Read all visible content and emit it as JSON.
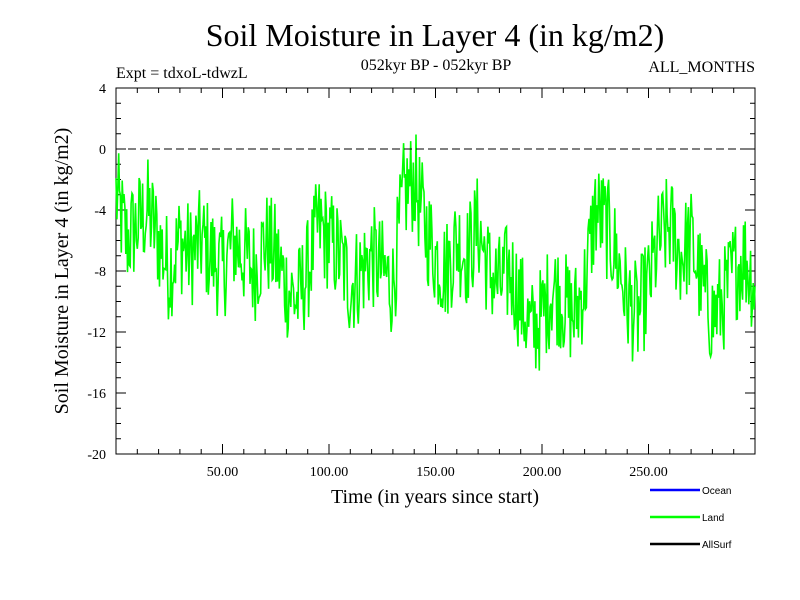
{
  "chart_data": {
    "type": "line",
    "title": "Soil Moisture in Layer 4 (in kg/m2)",
    "subtitle_left": "Expt = tdxoL-tdwzL",
    "subtitle_center": "052kyr BP - 052kyr BP",
    "subtitle_right": "ALL_MONTHS",
    "xlabel": "Time (in years since start)",
    "ylabel": "Soil Moisture in Layer 4 (in kg/m2)",
    "xlim": [
      0,
      300
    ],
    "ylim": [
      -20,
      4
    ],
    "x_ticks": [
      {
        "value": 50,
        "label": "50.00"
      },
      {
        "value": 100,
        "label": "100.00"
      },
      {
        "value": 150,
        "label": "150.00"
      },
      {
        "value": 200,
        "label": "200.00"
      },
      {
        "value": 250,
        "label": "250.00"
      }
    ],
    "y_ticks": [
      {
        "value": 4,
        "label": "4"
      },
      {
        "value": 0,
        "label": "0"
      },
      {
        "value": -4,
        "label": "-4"
      },
      {
        "value": -8,
        "label": "-8"
      },
      {
        "value": -12,
        "label": "-12"
      },
      {
        "value": -16,
        "label": "-16"
      },
      {
        "value": -20,
        "label": "-20"
      }
    ],
    "reference_line": {
      "y": 0,
      "style": "dashed"
    },
    "legend_position": "bottom-right",
    "series": [
      {
        "name": "Ocean",
        "color": "#0000ff",
        "x": [],
        "y": []
      },
      {
        "name": "Land",
        "color": "#00ff00",
        "x": [
          0,
          5,
          10,
          15,
          20,
          25,
          30,
          35,
          40,
          45,
          50,
          55,
          60,
          65,
          70,
          75,
          80,
          85,
          90,
          95,
          100,
          105,
          110,
          115,
          120,
          125,
          130,
          135,
          140,
          145,
          150,
          155,
          160,
          165,
          170,
          175,
          180,
          185,
          190,
          195,
          200,
          205,
          210,
          215,
          220,
          225,
          230,
          235,
          240,
          245,
          250,
          255,
          260,
          265,
          270,
          275,
          280,
          285,
          290,
          295,
          300
        ],
        "y": [
          -3,
          -6,
          -5,
          -4,
          -6,
          -8,
          -6,
          -7,
          -6,
          -7,
          -8,
          -6,
          -7,
          -8,
          -6,
          -7,
          -9,
          -10,
          -8,
          -5,
          -6,
          -7,
          -9,
          -8,
          -7,
          -8,
          -9,
          -3,
          -2,
          -5,
          -7,
          -8,
          -6,
          -7,
          -5,
          -8,
          -9,
          -8,
          -10,
          -12,
          -11,
          -9,
          -10,
          -11,
          -9,
          -4,
          -5,
          -7,
          -10,
          -11,
          -9,
          -6,
          -5,
          -7,
          -6,
          -9,
          -11,
          -10,
          -8,
          -7,
          -9
        ]
      },
      {
        "name": "AllSurf",
        "color": "#000000",
        "x": [],
        "y": []
      }
    ],
    "grid": false
  }
}
